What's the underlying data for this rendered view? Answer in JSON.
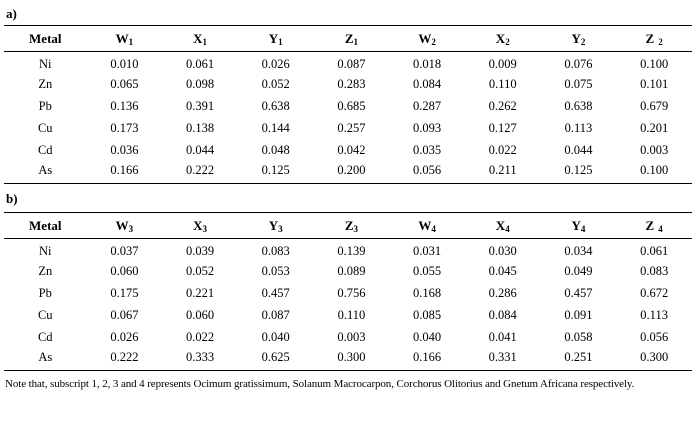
{
  "page": {
    "label_a": "a)",
    "label_b": "b)",
    "footnote": "Note that, subscript 1, 2, 3 and 4 represents Ocimum gratissimum, Solanum Macrocarpon, Corchorus Olitorius and Gnetum Africana respectively."
  },
  "colors": {
    "text": "#000000",
    "rule": "#000000",
    "background": "#ffffff"
  },
  "table_a": {
    "metal_header": "Metal",
    "columns": [
      {
        "base": "W",
        "sub": "1"
      },
      {
        "base": "X",
        "sub": "1"
      },
      {
        "base": "Y",
        "sub": "1"
      },
      {
        "base": "Z",
        "sub": "1"
      },
      {
        "base": "W",
        "sub": "2"
      },
      {
        "base": "X",
        "sub": "2"
      },
      {
        "base": "Y",
        "sub": "2"
      },
      {
        "base": "Z",
        "sub": "2",
        "gap": true
      }
    ],
    "rows": [
      {
        "metal": "Ni",
        "values": [
          "0.010",
          "0.061",
          "0.026",
          "0.087",
          "0.018",
          "0.009",
          "0.076",
          "0.100"
        ]
      },
      {
        "metal": "Zn",
        "values": [
          "0.065",
          "0.098",
          "0.052",
          "0.283",
          "0.084",
          "0.110",
          "0.075",
          "0.101"
        ]
      },
      {
        "metal": "Pb",
        "values": [
          "0.136",
          "0.391",
          "0.638",
          "0.685",
          "0.287",
          "0.262",
          "0.638",
          "0.679"
        ]
      },
      {
        "metal": "Cu",
        "values": [
          "0.173",
          "0.138",
          "0.144",
          "0.257",
          "0.093",
          "0.127",
          "0.113",
          "0.201"
        ]
      },
      {
        "metal": "Cd",
        "values": [
          "0.036",
          "0.044",
          "0.048",
          "0.042",
          "0.035",
          "0.022",
          "0.044",
          "0.003"
        ]
      },
      {
        "metal": "As",
        "values": [
          "0.166",
          "0.222",
          "0.125",
          "0.200",
          "0.056",
          "0.211",
          "0.125",
          "0.100"
        ]
      }
    ]
  },
  "table_b": {
    "metal_header": "Metal",
    "columns": [
      {
        "base": "W",
        "sub": "3"
      },
      {
        "base": "X",
        "sub": "3"
      },
      {
        "base": "Y",
        "sub": "3"
      },
      {
        "base": "Z",
        "sub": "3"
      },
      {
        "base": "W",
        "sub": "4"
      },
      {
        "base": "X",
        "sub": "4"
      },
      {
        "base": "Y",
        "sub": "4"
      },
      {
        "base": "Z",
        "sub": "4",
        "gap": true
      }
    ],
    "rows": [
      {
        "metal": "Ni",
        "values": [
          "0.037",
          "0.039",
          "0.083",
          "0.139",
          "0.031",
          "0.030",
          "0.034",
          "0.061"
        ]
      },
      {
        "metal": "Zn",
        "values": [
          "0.060",
          "0.052",
          "0.053",
          "0.089",
          "0.055",
          "0.045",
          "0.049",
          "0.083"
        ]
      },
      {
        "metal": "Pb",
        "values": [
          "0.175",
          "0.221",
          "0.457",
          "0.756",
          "0.168",
          "0.286",
          "0.457",
          "0.672"
        ]
      },
      {
        "metal": "Cu",
        "values": [
          "0.067",
          "0.060",
          "0.087",
          "0.110",
          "0.085",
          "0.084",
          "0.091",
          "0.113"
        ]
      },
      {
        "metal": "Cd",
        "values": [
          "0.026",
          "0.022",
          "0.040",
          "0.003",
          "0.040",
          "0.041",
          "0.058",
          "0.056"
        ]
      },
      {
        "metal": "As",
        "values": [
          "0.222",
          "0.333",
          "0.625",
          "0.300",
          "0.166",
          "0.331",
          "0.251",
          "0.300"
        ]
      }
    ]
  }
}
